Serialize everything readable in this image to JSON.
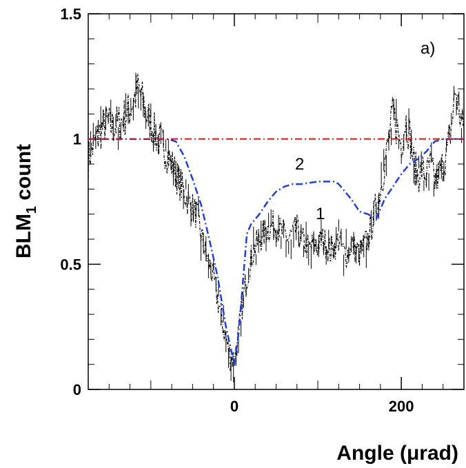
{
  "chart_data": {
    "type": "line",
    "title": "",
    "panel_label": "a)",
    "xlabel": "Angle  (μrad)",
    "ylabel_main": "BLM",
    "ylabel_sub": "1",
    "ylabel_tail": " count",
    "xlim": [
      -175,
      275
    ],
    "ylim": [
      0,
      1.5
    ],
    "x_ticks": [
      0,
      200
    ],
    "x_tick_labels": [
      "0",
      "200"
    ],
    "y_ticks": [
      0,
      0.5,
      1,
      1.5
    ],
    "y_tick_labels": [
      "0",
      "0.5",
      "1",
      "1.5"
    ],
    "grid": false,
    "colors": {
      "curve1": "#000000",
      "curve2": "#1f3fd8",
      "reference": "#e01010"
    },
    "annotations": [
      {
        "text": "2",
        "x": 80,
        "y": 0.88
      },
      {
        "text": "1",
        "x": 103,
        "y": 0.68
      }
    ],
    "series": [
      {
        "id": "curve1",
        "style": "dash-dot-noisy",
        "x": [
          -175,
          -165,
          -155,
          -145,
          -135,
          -125,
          -115,
          -105,
          -95,
          -85,
          -75,
          -65,
          -55,
          -45,
          -40,
          -35,
          -30,
          -25,
          -20,
          -15,
          -10,
          -5,
          0,
          5,
          10,
          15,
          20,
          25,
          30,
          35,
          40,
          45,
          50,
          55,
          60,
          65,
          70,
          75,
          80,
          85,
          90,
          95,
          100,
          105,
          110,
          115,
          120,
          125,
          130,
          135,
          140,
          145,
          150,
          155,
          160,
          165,
          170,
          175,
          180,
          185,
          190,
          195,
          200,
          205,
          210,
          215,
          220,
          225,
          230,
          235,
          240,
          245,
          250,
          255,
          260,
          265,
          270,
          275
        ],
        "y": [
          0.92,
          1.0,
          1.06,
          1.05,
          1.07,
          1.12,
          1.2,
          1.1,
          1.02,
          0.97,
          0.9,
          0.82,
          0.75,
          0.7,
          0.62,
          0.55,
          0.5,
          0.44,
          0.36,
          0.28,
          0.2,
          0.13,
          0.12,
          0.22,
          0.35,
          0.45,
          0.52,
          0.57,
          0.6,
          0.62,
          0.64,
          0.65,
          0.66,
          0.63,
          0.62,
          0.6,
          0.62,
          0.64,
          0.6,
          0.58,
          0.56,
          0.58,
          0.57,
          0.6,
          0.58,
          0.55,
          0.57,
          0.6,
          0.55,
          0.54,
          0.58,
          0.56,
          0.54,
          0.57,
          0.6,
          0.66,
          0.74,
          0.8,
          0.9,
          1.0,
          1.1,
          1.04,
          0.98,
          1.08,
          1.02,
          0.9,
          0.85,
          0.88,
          0.85,
          0.9,
          0.83,
          0.86,
          0.9,
          0.95,
          1.05,
          1.2,
          1.1,
          1.02
        ]
      },
      {
        "id": "curve2",
        "style": "dash-dot",
        "x": [
          -175,
          -80,
          -70,
          -60,
          -50,
          -40,
          -30,
          -20,
          -10,
          0,
          5,
          10,
          15,
          20,
          30,
          40,
          50,
          60,
          70,
          80,
          90,
          100,
          110,
          120,
          125,
          130,
          140,
          150,
          160,
          170,
          175,
          180,
          190,
          200,
          210,
          220,
          230,
          240,
          250,
          275
        ],
        "y": [
          1.0,
          1.0,
          0.99,
          0.93,
          0.84,
          0.74,
          0.6,
          0.45,
          0.25,
          0.1,
          0.22,
          0.42,
          0.62,
          0.66,
          0.7,
          0.75,
          0.79,
          0.81,
          0.82,
          0.82,
          0.825,
          0.83,
          0.83,
          0.83,
          0.82,
          0.8,
          0.76,
          0.71,
          0.7,
          0.68,
          0.72,
          0.76,
          0.81,
          0.86,
          0.9,
          0.92,
          0.95,
          0.99,
          1.0,
          1.0
        ]
      },
      {
        "id": "reference",
        "style": "dash-dot-horizontal",
        "x": [
          -175,
          275
        ],
        "y": [
          1,
          1
        ]
      }
    ]
  }
}
